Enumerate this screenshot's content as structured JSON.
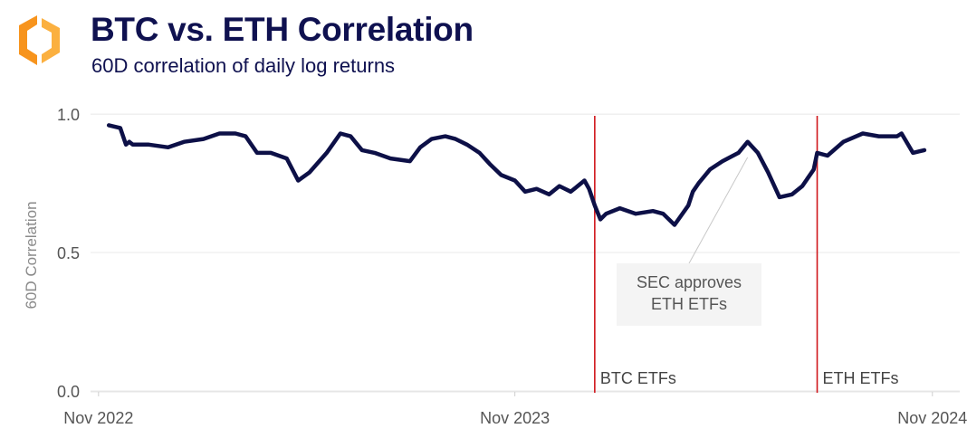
{
  "header": {
    "title": "BTC vs. ETH Correlation",
    "subtitle": "60D correlation of daily log returns"
  },
  "colors": {
    "line": "#0d1047",
    "marker": "#d0161b",
    "grid": "#e8e8e8",
    "text": "#555555",
    "logo_orange": "#f7941d",
    "logo_yellow": "#fbb040"
  },
  "chart_data": {
    "type": "line",
    "title": "BTC vs. ETH Correlation",
    "subtitle": "60D correlation of daily log returns",
    "xlabel": "",
    "ylabel": "60D Correlation",
    "xlim": [
      "2022-10-25",
      "2024-11-25"
    ],
    "ylim": [
      0,
      1.02
    ],
    "yticks": [
      0.0,
      0.5,
      1.0
    ],
    "ytick_labels": [
      "0.0",
      "0.5",
      "1.0"
    ],
    "xticks": [
      "2022-11-01",
      "2023-11-01",
      "2024-11-01"
    ],
    "xtick_labels": [
      "Nov 2022",
      "Nov 2023",
      "Nov 2024"
    ],
    "grid": true,
    "series": [
      {
        "x": [
          "2022-11-10",
          "2022-11-20",
          "2022-11-25",
          "2022-11-28",
          "2022-12-01",
          "2022-12-05",
          "2022-12-15",
          "2023-01-01",
          "2023-01-15",
          "2023-02-01",
          "2023-02-15",
          "2023-03-01",
          "2023-03-10",
          "2023-03-20",
          "2023-04-01",
          "2023-04-15",
          "2023-04-25",
          "2023-05-05",
          "2023-05-20",
          "2023-06-01",
          "2023-06-10",
          "2023-06-20",
          "2023-07-01",
          "2023-07-15",
          "2023-08-01",
          "2023-08-10",
          "2023-08-20",
          "2023-09-01",
          "2023-09-10",
          "2023-09-20",
          "2023-10-01",
          "2023-10-10",
          "2023-10-20",
          "2023-11-01",
          "2023-11-10",
          "2023-11-20",
          "2023-12-01",
          "2023-12-10",
          "2023-12-20",
          "2024-01-01",
          "2024-01-05",
          "2024-01-10",
          "2024-01-15",
          "2024-01-20",
          "2024-02-01",
          "2024-02-15",
          "2024-03-01",
          "2024-03-10",
          "2024-03-20",
          "2024-04-01",
          "2024-04-05",
          "2024-04-10",
          "2024-04-20",
          "2024-05-01",
          "2024-05-15",
          "2024-05-23",
          "2024-06-01",
          "2024-06-10",
          "2024-06-20",
          "2024-07-01",
          "2024-07-10",
          "2024-07-20",
          "2024-07-23",
          "2024-08-01",
          "2024-08-15",
          "2024-09-01",
          "2024-09-15",
          "2024-10-01",
          "2024-10-05",
          "2024-10-15",
          "2024-10-25"
        ],
        "values": [
          0.96,
          0.95,
          0.89,
          0.9,
          0.89,
          0.89,
          0.89,
          0.88,
          0.9,
          0.91,
          0.93,
          0.93,
          0.92,
          0.86,
          0.86,
          0.84,
          0.76,
          0.79,
          0.86,
          0.93,
          0.92,
          0.87,
          0.86,
          0.84,
          0.83,
          0.88,
          0.91,
          0.92,
          0.91,
          0.89,
          0.86,
          0.82,
          0.78,
          0.76,
          0.72,
          0.73,
          0.71,
          0.74,
          0.72,
          0.76,
          0.73,
          0.67,
          0.62,
          0.64,
          0.66,
          0.64,
          0.65,
          0.64,
          0.6,
          0.67,
          0.72,
          0.75,
          0.8,
          0.83,
          0.86,
          0.9,
          0.86,
          0.79,
          0.7,
          0.71,
          0.74,
          0.8,
          0.86,
          0.85,
          0.9,
          0.93,
          0.92,
          0.92,
          0.93,
          0.86,
          0.87
        ]
      }
    ],
    "annotations": [
      {
        "x": "2024-05-23",
        "y": 0.87,
        "text_lines": [
          "SEC approves",
          "ETH ETFs"
        ]
      }
    ],
    "markers": [
      {
        "x": "2024-01-10",
        "label": "BTC ETFs"
      },
      {
        "x": "2024-07-23",
        "label": "ETH ETFs"
      }
    ]
  }
}
